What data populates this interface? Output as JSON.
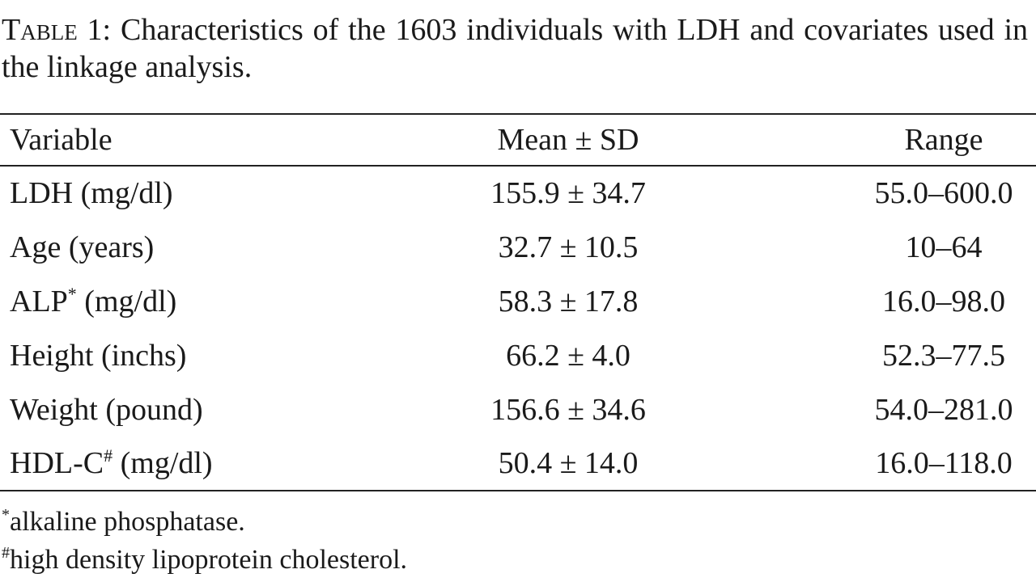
{
  "caption": {
    "label": "Table 1:",
    "text": "Characteristics of the 1603 individuals with LDH and covariates used in the linkage analysis."
  },
  "table": {
    "headers": [
      "Variable",
      "Mean ± SD",
      "Range"
    ],
    "rows": [
      {
        "variable": "LDH",
        "unit": "(mg/dl)",
        "mean_sd": "155.9 ± 34.7",
        "range": "55.0–600.0"
      },
      {
        "variable": "Age",
        "unit": "(years)",
        "mean_sd": "32.7 ± 10.5",
        "range": "10–64"
      },
      {
        "variable": "ALP",
        "note_mark": "*",
        "unit": "(mg/dl)",
        "mean_sd": "58.3 ± 17.8",
        "range": "16.0–98.0"
      },
      {
        "variable": "Height",
        "unit": "(inchs)",
        "mean_sd": "66.2 ± 4.0",
        "range": "52.3–77.5"
      },
      {
        "variable": "Weight",
        "unit": "(pound)",
        "mean_sd": "156.6 ± 34.6",
        "range": "54.0–281.0"
      },
      {
        "variable": "HDL-C",
        "note_mark": "#",
        "unit": "(mg/dl)",
        "mean_sd": "50.4 ± 14.0",
        "range": "16.0–118.0"
      }
    ]
  },
  "footnotes": [
    {
      "mark": "*",
      "text": "alkaline phosphatase."
    },
    {
      "mark": "#",
      "text": "high density lipoprotein cholesterol."
    }
  ]
}
